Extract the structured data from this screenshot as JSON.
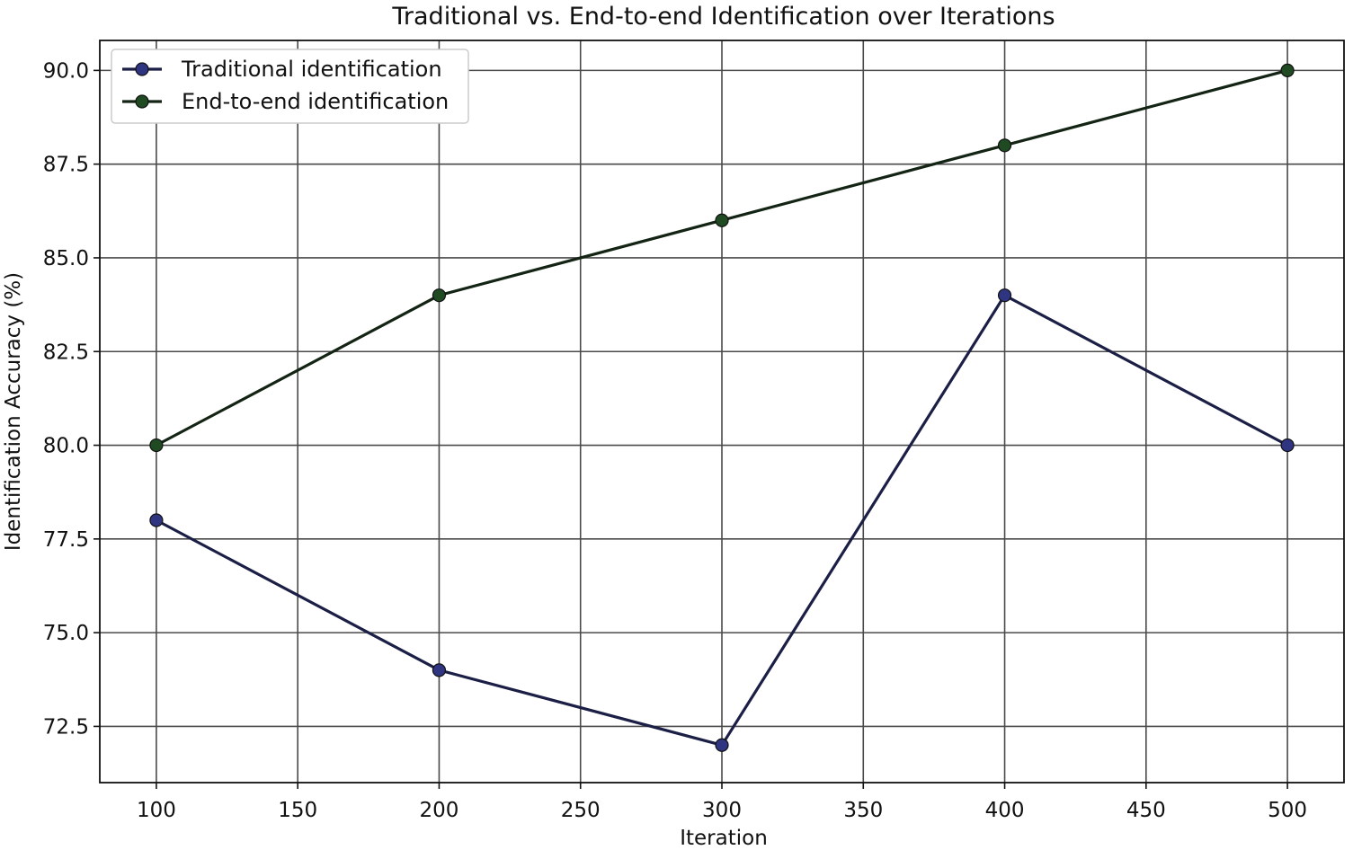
{
  "chart_data": {
    "type": "line",
    "title": "Traditional vs. End-to-end Identification over Iterations",
    "xlabel": "Iteration",
    "ylabel": "Identification Accuracy (%)",
    "x": [
      100,
      200,
      300,
      400,
      500
    ],
    "xlim": [
      80,
      520
    ],
    "ylim": [
      71.0,
      90.8
    ],
    "xticks": [
      "100",
      "150",
      "200",
      "250",
      "300",
      "350",
      "400",
      "450",
      "500"
    ],
    "yticks": [
      "72.5",
      "75.0",
      "77.5",
      "80.0",
      "82.5",
      "85.0",
      "87.5",
      "90.0"
    ],
    "grid": true,
    "legend_position": "upper left",
    "series": [
      {
        "name": "Traditional identification",
        "values": [
          78,
          74,
          72,
          84,
          80
        ],
        "color": "#2f3580",
        "line_color": "#1c1f45"
      },
      {
        "name": "End-to-end identification",
        "values": [
          80,
          84,
          86,
          88,
          90
        ],
        "color": "#1f4a22",
        "line_color": "#142414"
      }
    ]
  }
}
